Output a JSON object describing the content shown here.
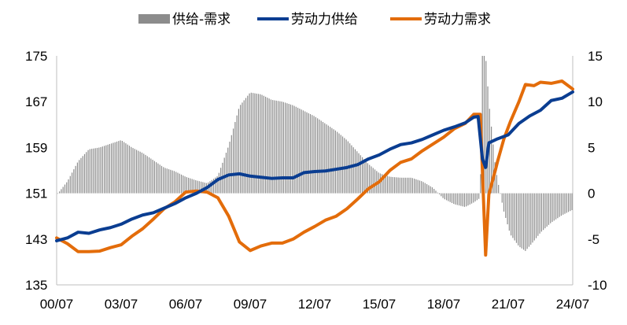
{
  "chart_data": {
    "type": "combo",
    "legend": [
      {
        "key": "gap",
        "label": "供给-需求",
        "color": "#8c8c8c",
        "kind": "bar"
      },
      {
        "key": "supply",
        "label": "劳动力供给",
        "color": "#0a3d91",
        "kind": "line"
      },
      {
        "key": "demand",
        "label": "劳动力需求",
        "color": "#e36c0a",
        "kind": "line"
      }
    ],
    "legend_position": "top",
    "x_tick_labels": [
      "00/07",
      "03/07",
      "06/07",
      "09/07",
      "12/07",
      "15/07",
      "18/07",
      "21/07",
      "24/07"
    ],
    "x_range": [
      2000.5,
      2024.5
    ],
    "y_left": {
      "ylim": [
        135,
        175
      ],
      "ticks": [
        "135",
        "143",
        "151",
        "159",
        "167",
        "175"
      ]
    },
    "y_right": {
      "ylim": [
        -10,
        15
      ],
      "ticks": [
        "-10",
        "-5",
        "0",
        "5",
        "10",
        "15"
      ]
    },
    "grid": false,
    "series": [
      {
        "name": "劳动力供给",
        "key": "supply",
        "axis": "left",
        "type": "line",
        "points": [
          [
            2000.5,
            142.7
          ],
          [
            2001.0,
            143.2
          ],
          [
            2001.5,
            144.2
          ],
          [
            2002.0,
            144.0
          ],
          [
            2002.5,
            144.6
          ],
          [
            2003.0,
            145.0
          ],
          [
            2003.5,
            145.6
          ],
          [
            2004.0,
            146.5
          ],
          [
            2004.5,
            147.2
          ],
          [
            2005.0,
            147.6
          ],
          [
            2005.5,
            148.4
          ],
          [
            2006.0,
            149.2
          ],
          [
            2006.5,
            150.2
          ],
          [
            2007.0,
            151.0
          ],
          [
            2007.5,
            152.0
          ],
          [
            2008.0,
            153.4
          ],
          [
            2008.5,
            154.2
          ],
          [
            2009.0,
            154.4
          ],
          [
            2009.5,
            154.0
          ],
          [
            2010.0,
            153.8
          ],
          [
            2010.5,
            153.6
          ],
          [
            2011.0,
            153.7
          ],
          [
            2011.5,
            153.7
          ],
          [
            2012.0,
            154.6
          ],
          [
            2012.5,
            154.8
          ],
          [
            2013.0,
            154.9
          ],
          [
            2013.5,
            155.2
          ],
          [
            2014.0,
            155.5
          ],
          [
            2014.5,
            156.0
          ],
          [
            2015.0,
            157.0
          ],
          [
            2015.5,
            157.7
          ],
          [
            2016.0,
            158.7
          ],
          [
            2016.5,
            159.5
          ],
          [
            2017.0,
            159.8
          ],
          [
            2017.5,
            160.4
          ],
          [
            2018.0,
            161.2
          ],
          [
            2018.5,
            162.0
          ],
          [
            2019.0,
            162.6
          ],
          [
            2019.5,
            163.3
          ],
          [
            2019.9,
            164.3
          ],
          [
            2020.1,
            164.4
          ],
          [
            2020.3,
            157.0
          ],
          [
            2020.45,
            155.5
          ],
          [
            2020.6,
            159.8
          ],
          [
            2021.0,
            160.5
          ],
          [
            2021.5,
            161.2
          ],
          [
            2022.0,
            163.2
          ],
          [
            2022.5,
            164.5
          ],
          [
            2023.0,
            165.5
          ],
          [
            2023.5,
            167.2
          ],
          [
            2024.0,
            167.6
          ],
          [
            2024.5,
            168.7
          ]
        ]
      },
      {
        "name": "劳动力需求",
        "key": "demand",
        "axis": "left",
        "type": "line",
        "points": [
          [
            2000.5,
            143.2
          ],
          [
            2001.0,
            142.2
          ],
          [
            2001.5,
            140.8
          ],
          [
            2002.0,
            140.8
          ],
          [
            2002.5,
            140.9
          ],
          [
            2003.0,
            141.5
          ],
          [
            2003.5,
            142.0
          ],
          [
            2004.0,
            143.5
          ],
          [
            2004.5,
            144.8
          ],
          [
            2005.0,
            146.5
          ],
          [
            2005.5,
            148.3
          ],
          [
            2006.0,
            149.5
          ],
          [
            2006.5,
            151.2
          ],
          [
            2007.0,
            151.4
          ],
          [
            2007.5,
            151.2
          ],
          [
            2008.0,
            150.2
          ],
          [
            2008.5,
            147.0
          ],
          [
            2009.0,
            142.5
          ],
          [
            2009.5,
            141.0
          ],
          [
            2010.0,
            141.8
          ],
          [
            2010.5,
            142.3
          ],
          [
            2011.0,
            142.3
          ],
          [
            2011.5,
            143.0
          ],
          [
            2012.0,
            144.2
          ],
          [
            2012.5,
            145.2
          ],
          [
            2013.0,
            146.3
          ],
          [
            2013.5,
            147.0
          ],
          [
            2014.0,
            148.3
          ],
          [
            2014.5,
            150.0
          ],
          [
            2015.0,
            151.8
          ],
          [
            2015.5,
            153.0
          ],
          [
            2016.0,
            155.0
          ],
          [
            2016.5,
            156.4
          ],
          [
            2017.0,
            157.0
          ],
          [
            2017.5,
            158.4
          ],
          [
            2018.0,
            159.6
          ],
          [
            2018.5,
            160.8
          ],
          [
            2019.0,
            162.3
          ],
          [
            2019.5,
            163.2
          ],
          [
            2019.9,
            164.8
          ],
          [
            2020.2,
            164.8
          ],
          [
            2020.35,
            150.0
          ],
          [
            2020.45,
            140.2
          ],
          [
            2020.6,
            150.8
          ],
          [
            2020.9,
            155.0
          ],
          [
            2021.0,
            156.5
          ],
          [
            2021.3,
            160.5
          ],
          [
            2021.6,
            163.5
          ],
          [
            2022.0,
            167.0
          ],
          [
            2022.3,
            170.0
          ],
          [
            2022.7,
            169.8
          ],
          [
            2023.0,
            170.4
          ],
          [
            2023.5,
            170.2
          ],
          [
            2024.0,
            170.6
          ],
          [
            2024.5,
            169.2
          ]
        ]
      },
      {
        "name": "供给-需求",
        "key": "gap",
        "axis": "right",
        "type": "bar",
        "points": [
          [
            2000.5,
            -0.2
          ],
          [
            2001.0,
            1.3
          ],
          [
            2001.5,
            3.5
          ],
          [
            2002.0,
            4.8
          ],
          [
            2002.5,
            5.0
          ],
          [
            2003.0,
            5.4
          ],
          [
            2003.5,
            5.8
          ],
          [
            2004.0,
            5.0
          ],
          [
            2004.5,
            4.4
          ],
          [
            2005.0,
            3.6
          ],
          [
            2005.5,
            2.8
          ],
          [
            2006.0,
            2.4
          ],
          [
            2006.5,
            1.8
          ],
          [
            2007.0,
            1.4
          ],
          [
            2007.5,
            1.1
          ],
          [
            2008.0,
            1.9
          ],
          [
            2008.5,
            5.2
          ],
          [
            2009.0,
            9.5
          ],
          [
            2009.5,
            11.0
          ],
          [
            2010.0,
            10.8
          ],
          [
            2010.5,
            10.2
          ],
          [
            2011.0,
            10.0
          ],
          [
            2011.5,
            9.6
          ],
          [
            2012.0,
            9.0
          ],
          [
            2012.5,
            8.4
          ],
          [
            2013.0,
            7.6
          ],
          [
            2013.5,
            6.8
          ],
          [
            2014.0,
            5.8
          ],
          [
            2014.5,
            4.5
          ],
          [
            2015.0,
            3.2
          ],
          [
            2015.5,
            2.2
          ],
          [
            2016.0,
            1.8
          ],
          [
            2016.5,
            1.7
          ],
          [
            2017.0,
            1.7
          ],
          [
            2017.5,
            1.3
          ],
          [
            2018.0,
            0.6
          ],
          [
            2018.5,
            -0.6
          ],
          [
            2019.0,
            -1.2
          ],
          [
            2019.5,
            -1.5
          ],
          [
            2019.9,
            -1.0
          ],
          [
            2020.2,
            -0.5
          ],
          [
            2020.3,
            15.0
          ],
          [
            2020.45,
            15.0
          ],
          [
            2020.6,
            10.0
          ],
          [
            2020.9,
            3.0
          ],
          [
            2021.0,
            1.5
          ],
          [
            2021.3,
            -2.0
          ],
          [
            2021.6,
            -4.5
          ],
          [
            2022.0,
            -5.8
          ],
          [
            2022.3,
            -6.3
          ],
          [
            2022.7,
            -5.2
          ],
          [
            2023.0,
            -4.3
          ],
          [
            2023.5,
            -3.2
          ],
          [
            2024.0,
            -2.4
          ],
          [
            2024.5,
            -1.8
          ]
        ]
      }
    ]
  }
}
